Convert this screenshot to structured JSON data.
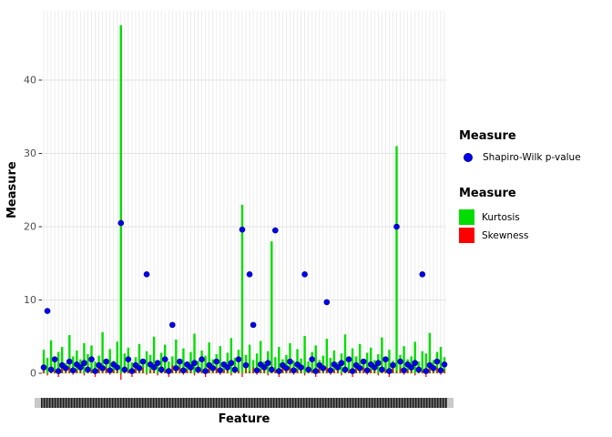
{
  "figure": {
    "x_axis_label": "Feature",
    "y_axis_label": "Measure"
  },
  "chart_data": {
    "type": "bar",
    "n_features": 110,
    "x_tick_labels_illegible": true,
    "title": "",
    "xlabel": "Feature",
    "ylabel": "Measure",
    "ylim": [
      -1,
      49
    ],
    "y_ticks": [
      0,
      10,
      20,
      30,
      40
    ],
    "grid": "dense-vertical-per-feature",
    "legend_position": "right",
    "series": [
      {
        "name": "Kurtosis",
        "geom": "bar",
        "color": "#00DD00",
        "values": [
          3.2,
          2.1,
          4.5,
          1.8,
          2.9,
          3.6,
          1.4,
          5.2,
          2.3,
          3.1,
          1.9,
          4.1,
          2.6,
          3.8,
          1.6,
          2.4,
          5.6,
          2.0,
          3.3,
          1.7,
          4.3,
          47.5,
          2.7,
          3.5,
          1.5,
          2.2,
          4.0,
          1.9,
          3.0,
          2.5,
          5.0,
          1.8,
          2.8,
          3.9,
          1.6,
          2.3,
          4.6,
          2.0,
          3.4,
          1.5,
          2.9,
          5.4,
          1.7,
          3.1,
          2.4,
          4.2,
          1.9,
          2.6,
          3.7,
          1.5,
          2.8,
          4.8,
          2.1,
          3.2,
          23.0,
          2.5,
          3.9,
          1.8,
          2.7,
          4.4,
          1.6,
          3.0,
          18.0,
          2.2,
          3.6,
          1.9,
          2.5,
          4.1,
          1.7,
          3.3,
          2.0,
          5.1,
          1.6,
          2.9,
          3.8,
          1.8,
          2.4,
          4.7,
          2.1,
          3.1,
          1.5,
          2.7,
          5.3,
          1.9,
          3.4,
          2.3,
          4.0,
          1.6,
          2.8,
          3.5,
          1.8,
          2.6,
          4.9,
          2.0,
          3.2,
          1.7,
          31.0,
          2.5,
          3.7,
          1.9,
          2.3,
          4.3,
          1.6,
          3.0,
          2.7,
          5.5,
          1.8,
          2.9,
          3.6,
          2.2
        ]
      },
      {
        "name": "Skewness",
        "geom": "bar",
        "color": "#FF0000",
        "values": [
          0.6,
          -0.3,
          0.9,
          0.4,
          -0.5,
          1.1,
          0.3,
          0.8,
          -0.2,
          0.5,
          0.6,
          -0.3,
          0.9,
          0.4,
          -0.5,
          1.1,
          0.3,
          0.8,
          -0.2,
          0.5,
          0.6,
          -0.9,
          0.9,
          0.4,
          -0.5,
          1.1,
          0.3,
          0.8,
          -0.2,
          0.5,
          0.6,
          -0.3,
          0.9,
          0.4,
          -0.5,
          1.1,
          0.3,
          0.8,
          -0.2,
          0.5,
          0.6,
          -0.3,
          0.9,
          0.4,
          -0.5,
          1.1,
          0.3,
          0.8,
          -0.2,
          0.5,
          0.6,
          -0.3,
          0.9,
          0.4,
          -0.5,
          1.1,
          0.3,
          0.8,
          -0.2,
          0.5,
          0.6,
          -0.3,
          0.9,
          0.4,
          -0.5,
          1.1,
          0.3,
          0.8,
          -0.2,
          0.5,
          0.6,
          -0.3,
          0.9,
          0.4,
          -0.5,
          1.1,
          0.3,
          0.8,
          -0.2,
          0.5,
          0.6,
          -0.3,
          0.9,
          0.4,
          -0.5,
          1.1,
          0.3,
          0.8,
          -0.2,
          0.5,
          0.6,
          -0.3,
          0.9,
          0.4,
          -0.5,
          1.1,
          0.3,
          0.8,
          -0.2,
          0.5,
          0.6,
          -0.3,
          0.9,
          0.4,
          -0.5,
          1.1,
          0.3,
          0.8,
          -0.2,
          0.5
        ]
      },
      {
        "name": "Shapiro-Wilk p-value",
        "geom": "point",
        "color": "#0000EE",
        "values": [
          0.8,
          8.5,
          0.5,
          1.9,
          0.3,
          1.1,
          0.7,
          1.6,
          0.4,
          1.2,
          0.8,
          1.4,
          0.5,
          1.9,
          0.3,
          1.1,
          0.7,
          1.6,
          0.4,
          1.2,
          0.8,
          20.5,
          0.5,
          1.9,
          0.3,
          1.1,
          0.7,
          1.6,
          13.5,
          1.2,
          0.8,
          1.4,
          0.5,
          1.9,
          0.3,
          6.6,
          0.7,
          1.6,
          0.4,
          1.2,
          0.8,
          1.4,
          0.5,
          1.9,
          0.3,
          1.1,
          0.7,
          1.6,
          0.4,
          1.2,
          0.8,
          1.4,
          0.5,
          1.9,
          19.6,
          1.1,
          13.5,
          6.6,
          0.4,
          1.2,
          0.8,
          1.4,
          0.5,
          19.5,
          0.3,
          1.1,
          0.7,
          1.6,
          0.4,
          1.2,
          0.8,
          13.5,
          0.5,
          1.9,
          0.3,
          1.1,
          0.7,
          9.7,
          0.4,
          1.2,
          0.8,
          1.4,
          0.5,
          1.9,
          0.3,
          1.1,
          0.7,
          1.6,
          0.4,
          1.2,
          0.8,
          1.4,
          0.5,
          1.9,
          0.3,
          1.1,
          20.0,
          1.6,
          0.4,
          1.2,
          0.8,
          1.4,
          0.5,
          13.5,
          0.3,
          1.1,
          0.7,
          1.6,
          0.4,
          1.2
        ]
      }
    ],
    "legends": [
      {
        "title": "Measure",
        "items": [
          {
            "label": "Shapiro-Wilk p-value",
            "marker": "point",
            "color": "#0000EE"
          }
        ]
      },
      {
        "title": "Measure",
        "items": [
          {
            "label": "Kurtosis",
            "marker": "square",
            "color": "#00DD00"
          },
          {
            "label": "Skewness",
            "marker": "square",
            "color": "#FF0000"
          }
        ]
      }
    ]
  },
  "colors": {
    "kurtosis": "#00DD00",
    "skewness": "#FF0000",
    "shapiro_point_fill": "#0000EE",
    "shapiro_point_stroke": "#000080",
    "grid_vertical": "#e8e8e8",
    "grid_horizontal": "#e3e3e3",
    "tick_text": "#4d4d4d"
  }
}
